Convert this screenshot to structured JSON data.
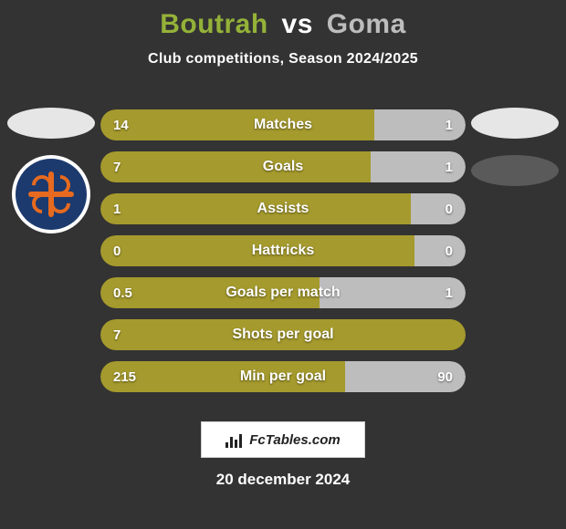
{
  "background_color": "#333333",
  "title": {
    "p1": "Boutrah",
    "vs": "vs",
    "p2": "Goma",
    "p1_color": "#94b238",
    "vs_color": "#ffffff",
    "p2_color": "#bdbdbd",
    "fontsize": 30
  },
  "subtitle": "Club competitions, Season 2024/2025",
  "player_colors": {
    "left": "#a59a2d",
    "right": "#bdbdbd"
  },
  "clubs": {
    "left": {
      "ellipse_color": "#e6e6e6",
      "badge_bg": "#ffffff",
      "badge_inner": "#1c3a6e",
      "badge_accent": "#e66a1f"
    },
    "right": {
      "ellipse_color_top": "#e6e6e6",
      "ellipse_color_bottom": "#5a5a5a"
    }
  },
  "bar_style": {
    "height": 34,
    "radius": 17,
    "gap": 12,
    "label_fontsize": 16,
    "value_fontsize": 15,
    "text_color": "#ffffff",
    "text_shadow": "0 1px 2px rgba(0,0,0,0.5)"
  },
  "stats": [
    {
      "label": "Matches",
      "left_value": "14",
      "right_value": "1",
      "left_pct": 75,
      "right_pct": 25
    },
    {
      "label": "Goals",
      "left_value": "7",
      "right_value": "1",
      "left_pct": 74,
      "right_pct": 26
    },
    {
      "label": "Assists",
      "left_value": "1",
      "right_value": "0",
      "left_pct": 85,
      "right_pct": 15
    },
    {
      "label": "Hattricks",
      "left_value": "0",
      "right_value": "0",
      "left_pct": 86,
      "right_pct": 14
    },
    {
      "label": "Goals per match",
      "left_value": "0.5",
      "right_value": "1",
      "left_pct": 60,
      "right_pct": 40
    },
    {
      "label": "Shots per goal",
      "left_value": "7",
      "right_value": "",
      "left_pct": 100,
      "right_pct": 0
    },
    {
      "label": "Min per goal",
      "left_value": "215",
      "right_value": "90",
      "left_pct": 67,
      "right_pct": 33
    }
  ],
  "brand": {
    "text": "FcTables.com",
    "bg": "#ffffff",
    "border": "#d0d0d0",
    "text_color": "#222222"
  },
  "date": "20 december 2024"
}
